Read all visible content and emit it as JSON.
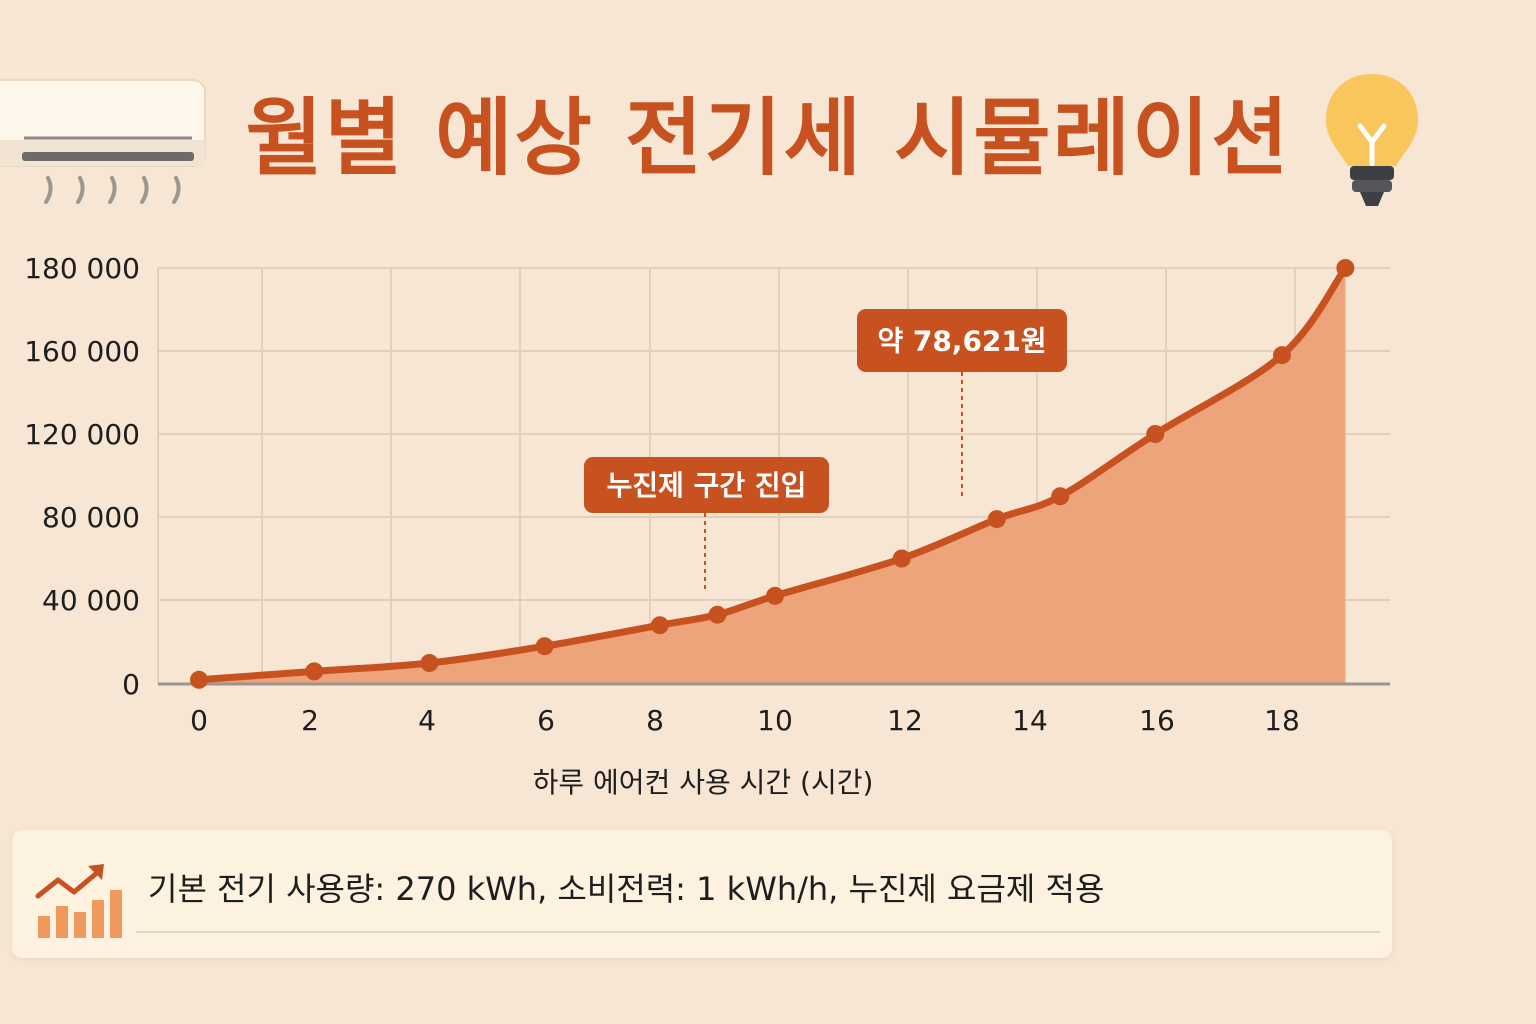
{
  "title": "월별 예상 전기세 시뮬레이션",
  "colors": {
    "accent": "#c8521f",
    "area_fill": "#eea47a",
    "background": "#f6e6d3",
    "grid": "#e2d0bd",
    "panel": "#fdf1df"
  },
  "icons": {
    "top_left": "air-conditioner-icon",
    "top_right": "light-bulb-icon",
    "panel": "growth-chart-icon"
  },
  "chart_data": {
    "type": "area",
    "title": "",
    "xlabel": "하루 에어컨 사용 시간 (시간)",
    "ylabel": "",
    "x_ticks": [
      "0",
      "2",
      "4",
      "6",
      "8",
      "10",
      "12",
      "14",
      "16",
      "18"
    ],
    "y_ticks": [
      "0",
      "40 000",
      "80 000",
      "120 000",
      "160 000",
      "180 000"
    ],
    "grid": true,
    "series": [
      {
        "x": [
          0,
          2,
          4,
          6,
          8,
          9,
          10,
          12,
          13.5,
          14.5,
          16,
          18,
          19
        ],
        "y": [
          2000,
          6000,
          10000,
          18000,
          28000,
          33000,
          42000,
          60000,
          79000,
          90000,
          120000,
          158000,
          180000
        ]
      }
    ],
    "annotations": [
      {
        "text": "누진제 구간 진입",
        "x": 9,
        "y": 33000
      },
      {
        "text": "약 78,621원",
        "x": 13.5,
        "y": 79000
      }
    ]
  },
  "info": {
    "text": "기본 전기 사용량: 270 kWh, 소비전력: 1 kWh/h, 누진제 요금제 적용"
  }
}
